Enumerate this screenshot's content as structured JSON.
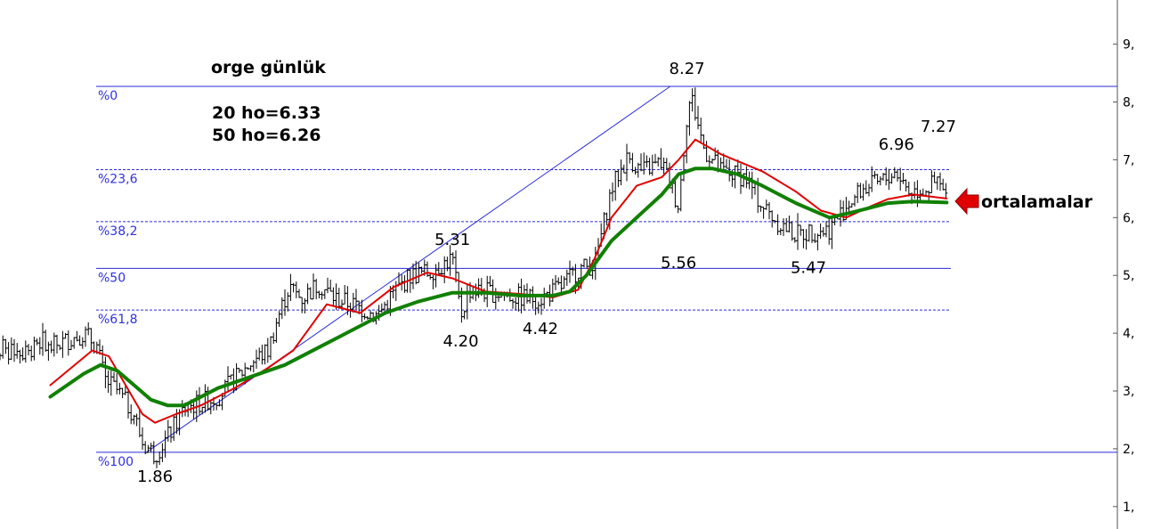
{
  "chart_data": {
    "type": "line",
    "title": "orge günlük",
    "ylim": [
      0.6,
      9.8
    ],
    "y_ticks": [
      {
        "value": 1,
        "label": "1,"
      },
      {
        "value": 2,
        "label": "2,"
      },
      {
        "value": 3,
        "label": "3,"
      },
      {
        "value": 4,
        "label": "4,"
      },
      {
        "value": 5,
        "label": "5,"
      },
      {
        "value": 6,
        "label": "6,"
      },
      {
        "value": 7,
        "label": "7,"
      },
      {
        "value": 8,
        "label": "8,"
      },
      {
        "value": 9,
        "label": "9,"
      }
    ],
    "moving_average_labels": [
      "20 ho=6.33",
      "50 ho=6.26"
    ],
    "fibonacci_levels": [
      {
        "label": "%0",
        "value": 8.27,
        "style": "solid"
      },
      {
        "label": "%23,6",
        "value": 6.83,
        "style": "dashed"
      },
      {
        "label": "%38,2",
        "value": 5.93,
        "style": "dashed"
      },
      {
        "label": "%50",
        "value": 5.12,
        "style": "solid"
      },
      {
        "label": "%61,8",
        "value": 4.4,
        "style": "dashed"
      },
      {
        "label": "%100",
        "value": 1.94,
        "style": "solid"
      }
    ],
    "annotations": [
      {
        "label": "1.86",
        "x": 25,
        "y": 1.86,
        "pos": "below"
      },
      {
        "label": "5.31",
        "x": 96,
        "y": 5.31,
        "pos": "above"
      },
      {
        "label": "4.20",
        "x": 98,
        "y": 4.2,
        "pos": "below"
      },
      {
        "label": "4.42",
        "x": 117,
        "y": 4.42,
        "pos": "below"
      },
      {
        "label": "8.27",
        "x": 152,
        "y": 8.27,
        "pos": "above"
      },
      {
        "label": "5.56",
        "x": 150,
        "y": 5.56,
        "pos": "below"
      },
      {
        "label": "5.47",
        "x": 181,
        "y": 5.47,
        "pos": "below"
      },
      {
        "label": "6.96",
        "x": 202,
        "y": 6.96,
        "pos": "above"
      },
      {
        "label": "7.27",
        "x": 212,
        "y": 7.27,
        "pos": "above"
      }
    ],
    "callout_label": "ortalamalar",
    "trendline": {
      "x": [
        23,
        148
      ],
      "y": [
        1.94,
        8.27
      ]
    },
    "price_anchors": {
      "x": [
        0,
        8,
        11,
        13,
        16,
        20,
        22,
        25,
        28,
        32,
        40,
        48,
        52,
        54,
        57,
        60,
        64,
        68,
        72,
        78,
        82,
        86,
        90,
        94,
        96,
        98,
        100,
        106,
        112,
        117,
        122,
        126,
        130,
        134,
        136,
        138,
        141,
        146,
        150,
        152,
        153,
        156,
        160,
        166,
        170,
        174,
        178,
        181,
        186,
        190,
        194,
        198,
        202,
        205,
        209,
        212,
        214
      ],
      "y": [
        3.75,
        4.0,
        3.8,
        3.2,
        3.0,
        2.6,
        2.1,
        1.9,
        2.2,
        2.7,
        2.9,
        3.5,
        3.7,
        4.2,
        4.8,
        4.6,
        4.85,
        4.6,
        4.5,
        4.3,
        4.7,
        5.0,
        5.05,
        5.2,
        5.3,
        4.3,
        4.75,
        4.7,
        4.62,
        4.6,
        4.8,
        5.1,
        5.2,
        6.5,
        6.8,
        7.05,
        6.8,
        6.95,
        6.2,
        7.8,
        8.1,
        7.2,
        6.8,
        6.7,
        6.2,
        5.9,
        5.7,
        5.75,
        5.8,
        6.2,
        6.5,
        6.6,
        6.8,
        6.45,
        6.5,
        6.6,
        6.33
      ]
    },
    "series": [
      {
        "name": "20 ho",
        "color": "#e00000",
        "x": [
          0,
          10,
          14,
          18,
          22,
          25,
          30,
          36,
          44,
          52,
          58,
          66,
          74,
          82,
          90,
          96,
          104,
          112,
          120,
          126,
          130,
          134,
          140,
          146,
          150,
          154,
          160,
          170,
          178,
          184,
          190,
          196,
          200,
          206,
          214
        ],
        "y": [
          3.1,
          3.7,
          3.6,
          3.1,
          2.6,
          2.45,
          2.6,
          2.75,
          3.05,
          3.4,
          3.7,
          4.5,
          4.35,
          4.8,
          5.05,
          4.95,
          4.72,
          4.68,
          4.62,
          4.75,
          5.3,
          6.0,
          6.55,
          6.7,
          7.0,
          7.35,
          7.1,
          6.8,
          6.45,
          6.12,
          6.0,
          6.2,
          6.32,
          6.4,
          6.33
        ]
      },
      {
        "name": "50 ho",
        "color": "#108000",
        "x": [
          0,
          8,
          12,
          16,
          20,
          24,
          28,
          32,
          40,
          48,
          56,
          64,
          72,
          80,
          88,
          96,
          104,
          112,
          120,
          124,
          128,
          134,
          140,
          146,
          150,
          154,
          158,
          164,
          170,
          178,
          186,
          192,
          200,
          206,
          214
        ],
        "y": [
          2.9,
          3.3,
          3.45,
          3.35,
          3.1,
          2.85,
          2.75,
          2.75,
          3.05,
          3.25,
          3.45,
          3.75,
          4.05,
          4.35,
          4.55,
          4.7,
          4.7,
          4.65,
          4.65,
          4.72,
          5.0,
          5.6,
          6.0,
          6.4,
          6.75,
          6.85,
          6.85,
          6.75,
          6.55,
          6.25,
          6.0,
          6.1,
          6.25,
          6.28,
          6.26
        ]
      }
    ]
  }
}
